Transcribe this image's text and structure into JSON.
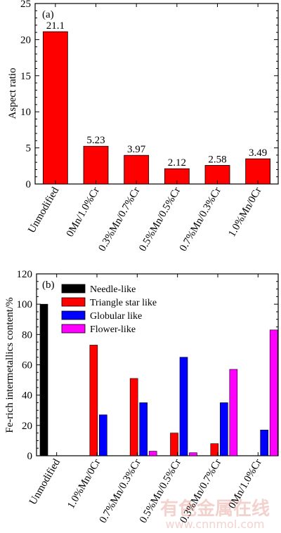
{
  "chart_data": [
    {
      "panel_label": "(a)",
      "type": "bar",
      "ylabel": "Aspect ratio",
      "ylim": [
        0,
        25
      ],
      "yticks": [
        0,
        5,
        10,
        15,
        20,
        25
      ],
      "categories": [
        "Unmodified",
        "0Mn/1.0%Cr",
        "0.3%Mn/0.7%Cr",
        "0.5%Mn/0.5%Cr",
        "0.7%Mn/0.3%Cr",
        "1.0%Mn/0Cr"
      ],
      "values": [
        21.1,
        5.23,
        3.97,
        2.12,
        2.58,
        3.49
      ],
      "value_labels": [
        "21.1",
        "5.23",
        "3.97",
        "2.12",
        "2.58",
        "3.49"
      ],
      "bar_color": "#ff0000"
    },
    {
      "panel_label": "(b)",
      "type": "bar",
      "ylabel": "Fe-rich intermetallics content/%",
      "ylim": [
        0,
        120
      ],
      "yticks": [
        0,
        20,
        40,
        60,
        80,
        100,
        120
      ],
      "legend_position": "top-left",
      "categories": [
        "Unmodified",
        "1.0%Mn/0Cr",
        "0.7%Mn/0.3%Cr",
        "0.5%Mn/0.5%Cr",
        "0.3%Mn/0.7%Cr",
        "0Mn/1.0%Cr"
      ],
      "series": [
        {
          "name": "Needle-like",
          "color": "#000000",
          "values": [
            100,
            0,
            0,
            0,
            0,
            0
          ]
        },
        {
          "name": "Triangle star like",
          "color": "#ff0000",
          "values": [
            0,
            73,
            51,
            15,
            8,
            0
          ]
        },
        {
          "name": "Globular like",
          "color": "#0000ff",
          "values": [
            0,
            27,
            35,
            65,
            35,
            17
          ]
        },
        {
          "name": "Flower-like",
          "color": "#ff00ff",
          "values": [
            0,
            0,
            3,
            2,
            57,
            83
          ]
        }
      ]
    }
  ],
  "watermark": {
    "text_cn": "有色金属在线",
    "text_url": "www.cnnmol.com"
  }
}
